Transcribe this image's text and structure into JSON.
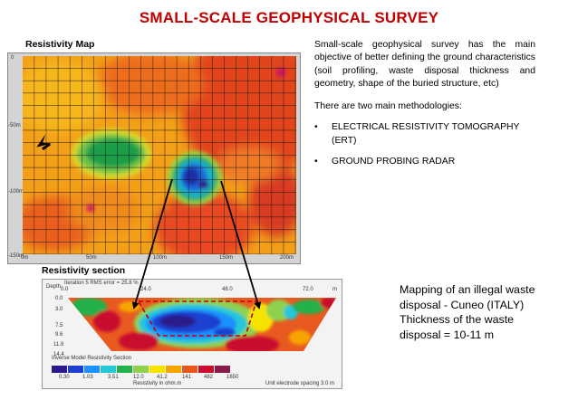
{
  "title": "SMALL-SCALE GEOPHYSICAL SURVEY",
  "map": {
    "label": "Resistivity Map",
    "y_ticks": [
      "0",
      "-50m",
      "-100m",
      "-150m"
    ],
    "x_ticks": [
      "0m",
      "50m",
      "100m",
      "150m",
      "200m"
    ]
  },
  "section": {
    "label": "Resistivity section",
    "depth_label": "Depth",
    "iteration": "Iteration 5 RMS error = 25.8 %",
    "top_scale": [
      "0.0",
      "24.0",
      "48.0",
      "72.0",
      "m"
    ],
    "depths": [
      "0.0",
      "3.0",
      "7.5",
      "9.6",
      "11.9",
      "14.4"
    ],
    "model_title": "Inverse Model Resistivity Section",
    "legend_values": [
      "0.30",
      "1.03",
      "3.51",
      "12.0",
      "41.2",
      "141",
      "482",
      "1650"
    ],
    "resistivity_unit": "Resistivity in ohm.m",
    "electrode_spacing": "Unit electrode spacing 3.0 m"
  },
  "description": {
    "intro": "Small-scale geophysical survey has the main objective of better defining the ground characteristics (soil profiling, waste disposal thickness and geometry, shape of the buried structure, etc)",
    "methods_intro": "There are two main methodologies:",
    "bullet": "•",
    "methods": [
      "ELECTRICAL RESISTIVITY TOMOGRAPHY (ERT)",
      "GROUND PROBING RADAR"
    ]
  },
  "note": {
    "lines": [
      "Mapping of an illegal waste",
      "disposal  - Cuneo (ITALY)",
      "Thickness of the waste",
      "disposal = 10-11 m"
    ]
  },
  "colors": {
    "title": "#c00000",
    "legend": [
      "#2a1a8a",
      "#1f3fd0",
      "#1e90ff",
      "#27c7d8",
      "#22b14c",
      "#8fd14f",
      "#f5e400",
      "#f7a400",
      "#e8561f",
      "#c8102e",
      "#8b1a4a"
    ]
  }
}
